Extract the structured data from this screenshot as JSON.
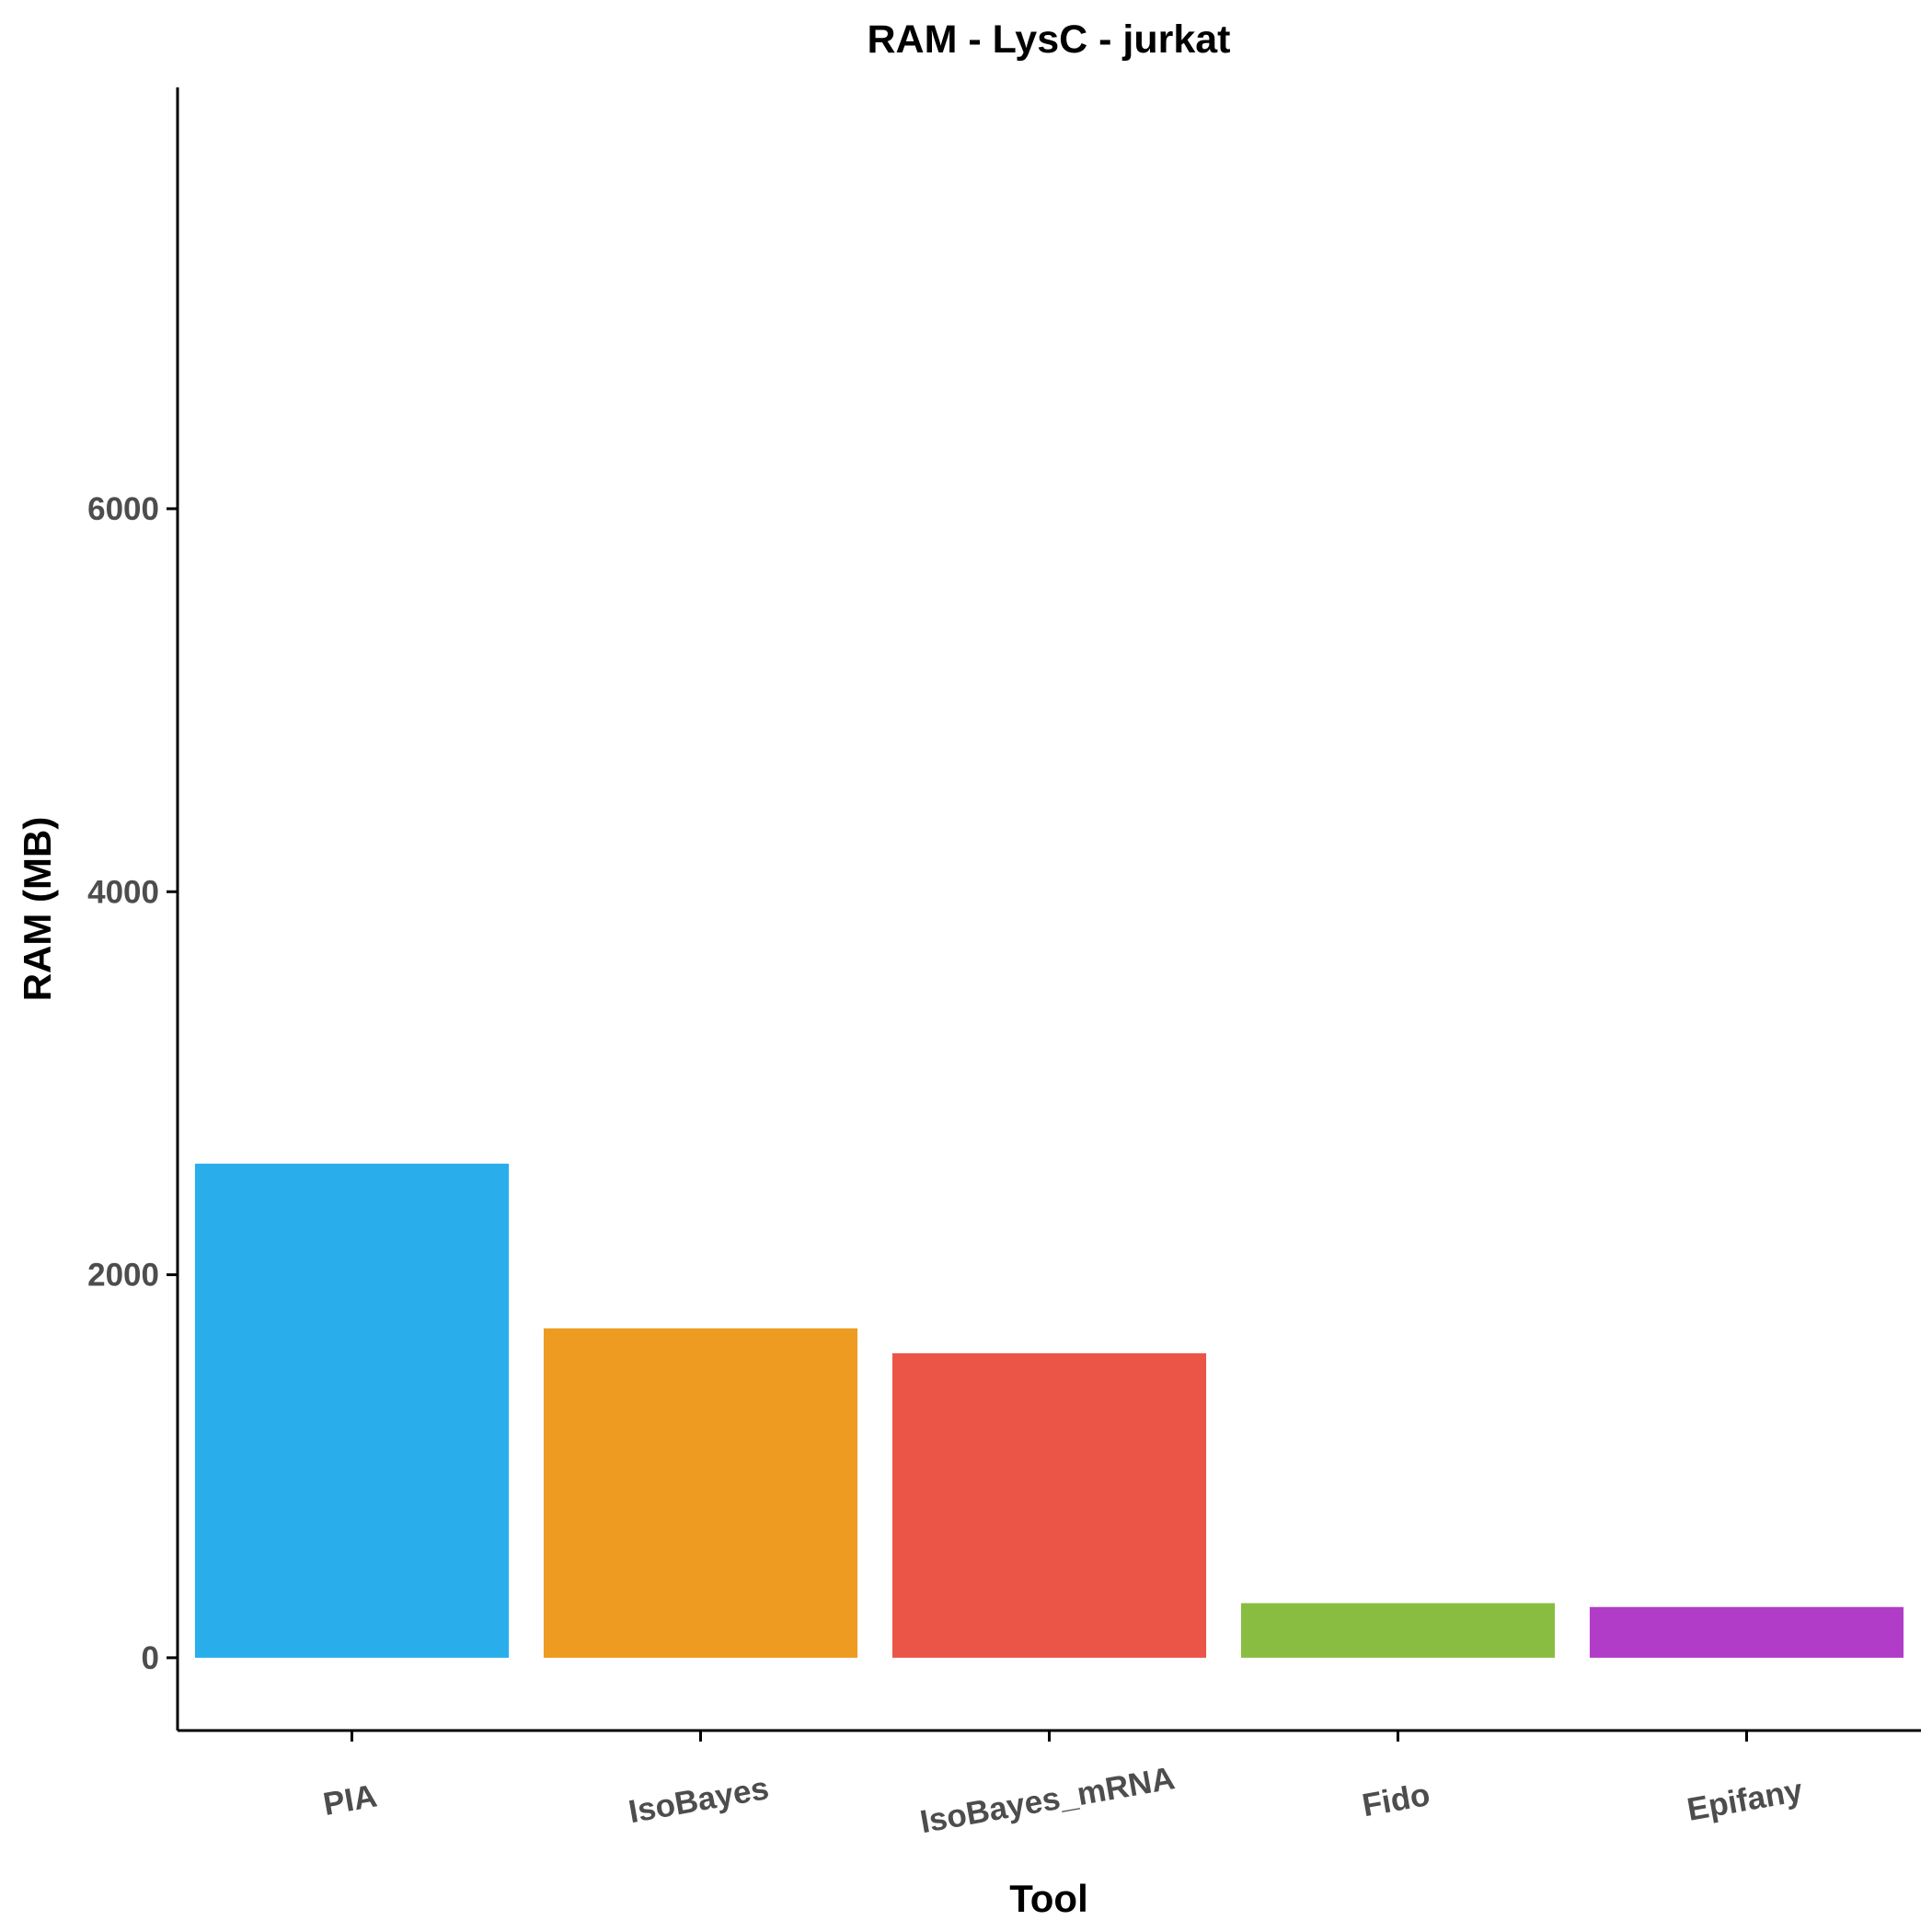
{
  "chart_data": {
    "type": "bar",
    "title": "RAM - LysC - jurkat",
    "xlabel": "Tool",
    "ylabel": "RAM (MB)",
    "categories": [
      "PIA",
      "IsoBayes",
      "IsoBayes_mRNA",
      "Fido",
      "Epifany"
    ],
    "values": [
      2580,
      1720,
      1590,
      285,
      265
    ],
    "colors": [
      "#29aeeb",
      "#ee9b22",
      "#ea5547",
      "#89bd42",
      "#b13cc8"
    ],
    "ylim": [
      -380,
      8200
    ],
    "yticks": [
      0,
      2000,
      4000,
      6000
    ],
    "ytick_labels": [
      "0",
      "2000",
      "4000",
      "6000"
    ],
    "grid": false,
    "legend": "none",
    "x_tick_label_rotation_deg": -10
  }
}
